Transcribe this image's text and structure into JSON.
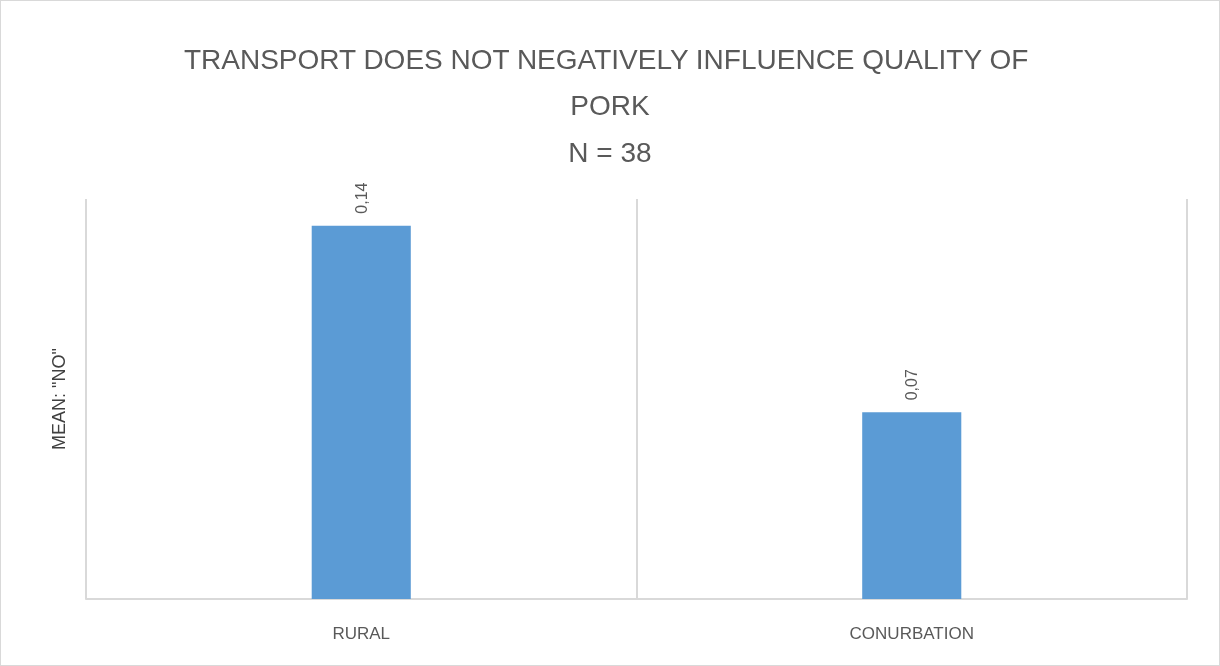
{
  "chart_data": {
    "type": "bar",
    "title": "TRANSPORT DOES NOT NEGATIVELY INFLUENCE QUALITY OF PORK",
    "subtitle": "N = 38",
    "ylabel": "MEAN: \"NO\"",
    "categories": [
      "RURAL",
      "CONURBATION"
    ],
    "values": [
      0.14,
      0.07
    ],
    "color": "#5b9bd5",
    "value_labels": [
      "0,14",
      "0,07"
    ],
    "grid": "x"
  }
}
